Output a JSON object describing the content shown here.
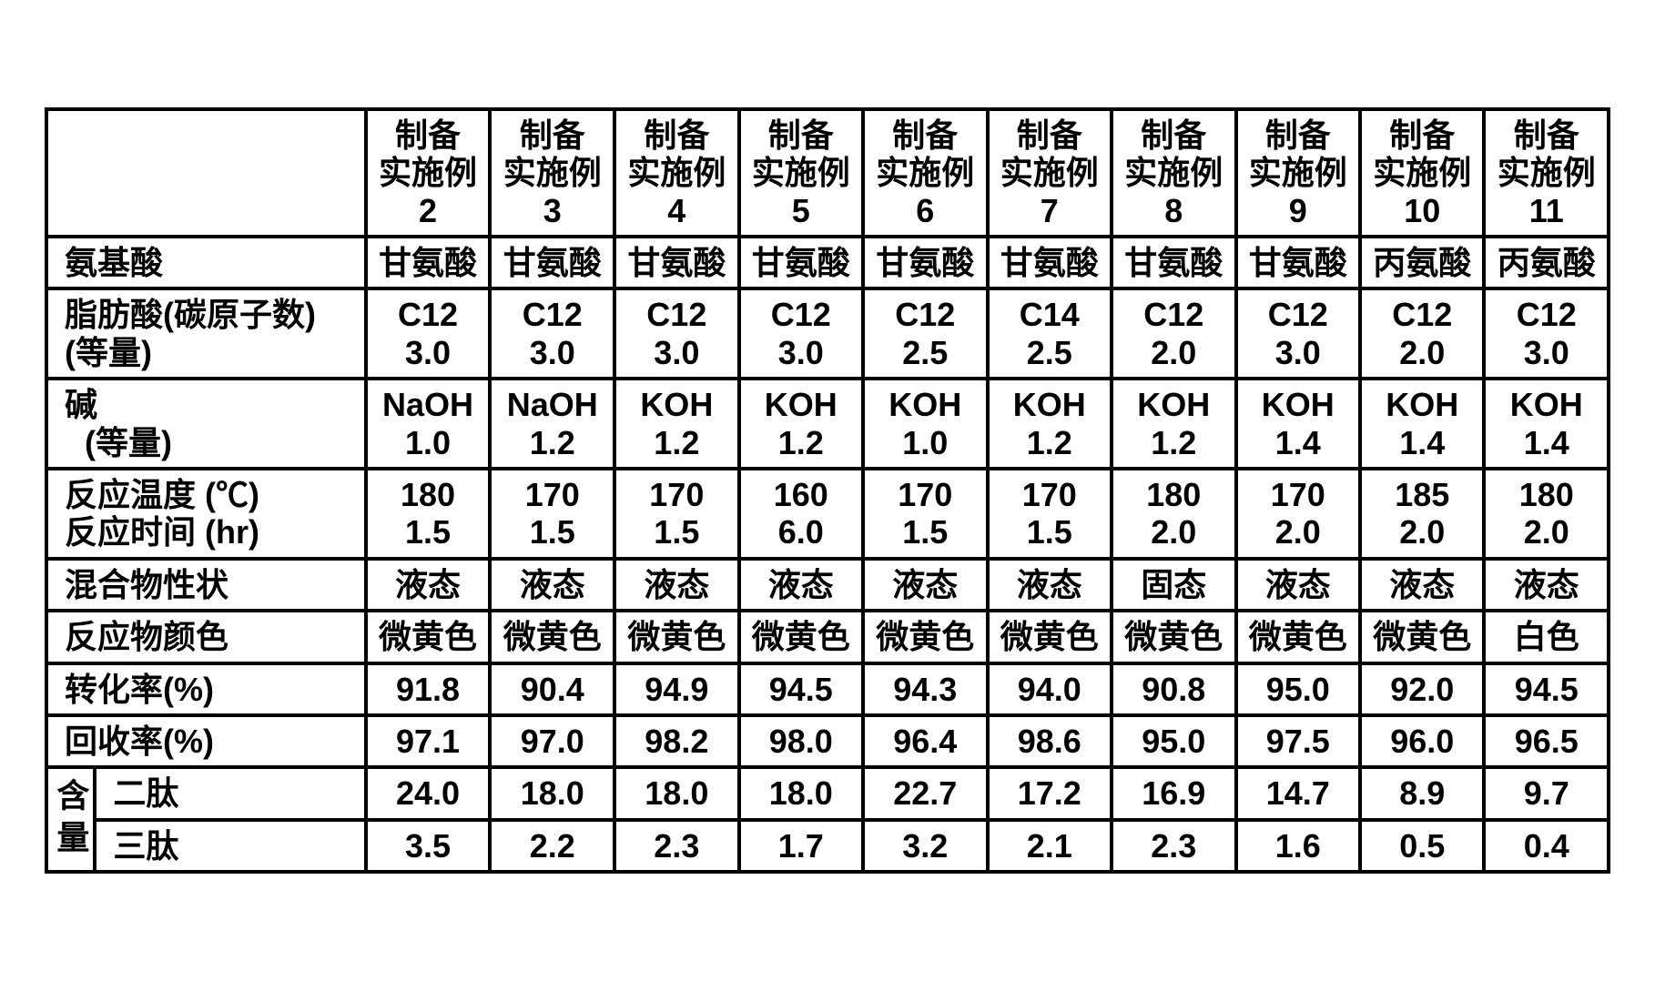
{
  "header_top": "制备",
  "header_mid": "实施例",
  "example_numbers": [
    "2",
    "3",
    "4",
    "5",
    "6",
    "7",
    "8",
    "9",
    "10",
    "11"
  ],
  "rows": {
    "amino_acid": {
      "label": "氨基酸",
      "vals": [
        "甘氨酸",
        "甘氨酸",
        "甘氨酸",
        "甘氨酸",
        "甘氨酸",
        "甘氨酸",
        "甘氨酸",
        "甘氨酸",
        "丙氨酸",
        "丙氨酸"
      ]
    },
    "fatty_acid": {
      "label_line1": "脂肪酸(碳原子数)",
      "label_line2": "(等量)",
      "carbon": [
        "C12",
        "C12",
        "C12",
        "C12",
        "C12",
        "C14",
        "C12",
        "C12",
        "C12",
        "C12"
      ],
      "equiv": [
        "3.0",
        "3.0",
        "3.0",
        "3.0",
        "2.5",
        "2.5",
        "2.0",
        "3.0",
        "2.0",
        "3.0"
      ]
    },
    "alkali": {
      "label_line1": "碱",
      "label_line2": "(等量)",
      "base": [
        "NaOH",
        "NaOH",
        "KOH",
        "KOH",
        "KOH",
        "KOH",
        "KOH",
        "KOH",
        "KOH",
        "KOH"
      ],
      "equiv": [
        "1.0",
        "1.2",
        "1.2",
        "1.2",
        "1.0",
        "1.2",
        "1.2",
        "1.4",
        "1.4",
        "1.4"
      ]
    },
    "temp_time": {
      "label_temp": "反应温度 (℃)",
      "label_time": "反应时间 (hr)",
      "temp": [
        "180",
        "170",
        "170",
        "160",
        "170",
        "170",
        "180",
        "170",
        "185",
        "180"
      ],
      "time": [
        "1.5",
        "1.5",
        "1.5",
        "6.0",
        "1.5",
        "1.5",
        "2.0",
        "2.0",
        "2.0",
        "2.0"
      ]
    },
    "mixture_state": {
      "label": "混合物性状",
      "vals": [
        "液态",
        "液态",
        "液态",
        "液态",
        "液态",
        "液态",
        "固态",
        "液态",
        "液态",
        "液态"
      ]
    },
    "reactant_color": {
      "label": "反应物颜色",
      "vals": [
        "微黄色",
        "微黄色",
        "微黄色",
        "微黄色",
        "微黄色",
        "微黄色",
        "微黄色",
        "微黄色",
        "微黄色",
        "白色"
      ]
    },
    "conversion": {
      "label": "转化率(%)",
      "vals": [
        "91.8",
        "90.4",
        "94.9",
        "94.5",
        "94.3",
        "94.0",
        "90.8",
        "95.0",
        "92.0",
        "94.5"
      ]
    },
    "recovery": {
      "label": "回收率(%)",
      "vals": [
        "97.1",
        "97.0",
        "98.2",
        "98.0",
        "96.4",
        "98.6",
        "95.0",
        "97.5",
        "96.0",
        "96.5"
      ]
    },
    "content": {
      "group_label": "含量",
      "dipeptide_label": "二肽",
      "tripeptide_label": "三肽",
      "dipeptide": [
        "24.0",
        "18.0",
        "18.0",
        "18.0",
        "22.7",
        "17.2",
        "16.9",
        "14.7",
        "8.9",
        "9.7"
      ],
      "tripeptide": [
        "3.5",
        "2.2",
        "2.3",
        "1.7",
        "3.2",
        "2.1",
        "2.3",
        "1.6",
        "0.5",
        "0.4"
      ]
    }
  }
}
